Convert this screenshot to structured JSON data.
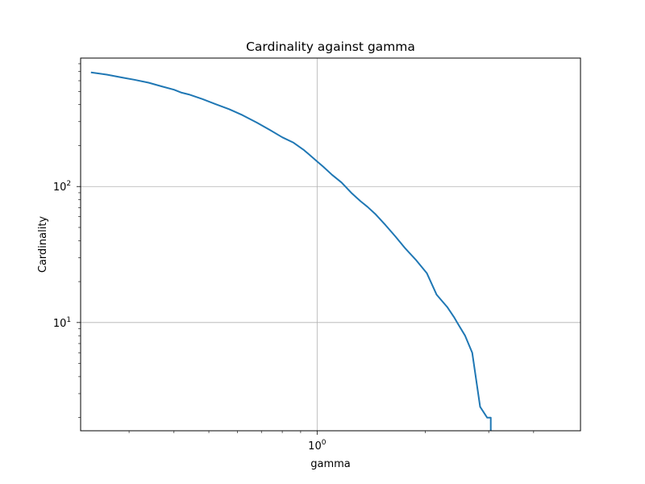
{
  "chart_data": {
    "type": "line",
    "title": "Cardinality against gamma",
    "xlabel": "gamma",
    "ylabel": "Cardinality",
    "xscale": "log",
    "yscale": "log",
    "grid": true,
    "xlim": [
      0.22,
      5.4
    ],
    "ylim": [
      1.6,
      880
    ],
    "major_xticks": [
      {
        "value": 1,
        "base": "10",
        "exp": "0"
      }
    ],
    "major_yticks": [
      {
        "value": 10,
        "base": "10",
        "exp": "1"
      },
      {
        "value": 100,
        "base": "10",
        "exp": "2"
      }
    ],
    "minor_xticks": [
      0.3,
      0.4,
      0.5,
      0.6,
      0.7,
      0.8,
      0.9,
      2,
      3,
      4
    ],
    "minor_yticks": [
      2,
      3,
      4,
      5,
      6,
      7,
      8,
      9,
      20,
      30,
      40,
      50,
      60,
      70,
      80,
      90,
      200,
      300,
      400,
      500,
      600,
      700,
      800
    ],
    "series": [
      {
        "color": "#1f77b4",
        "x": [
          0.235,
          0.26,
          0.29,
          0.31,
          0.34,
          0.37,
          0.4,
          0.42,
          0.44,
          0.48,
          0.52,
          0.57,
          0.62,
          0.68,
          0.74,
          0.8,
          0.86,
          0.92,
          0.96,
          1.0,
          1.04,
          1.1,
          1.17,
          1.25,
          1.32,
          1.38,
          1.45,
          1.55,
          1.65,
          1.76,
          1.88,
          2.02,
          2.15,
          2.3,
          2.4,
          2.48,
          2.58,
          2.7,
          2.84,
          2.97,
          3.04,
          3.04
        ],
        "y": [
          690,
          665,
          630,
          610,
          580,
          545,
          515,
          490,
          475,
          440,
          405,
          370,
          335,
          295,
          260,
          230,
          210,
          185,
          168,
          153,
          140,
          122,
          107,
          89,
          78,
          71,
          63,
          52,
          43,
          35,
          29,
          23,
          16,
          13,
          11,
          9.5,
          8,
          6,
          2.4,
          2,
          2,
          1.6
        ]
      }
    ]
  }
}
